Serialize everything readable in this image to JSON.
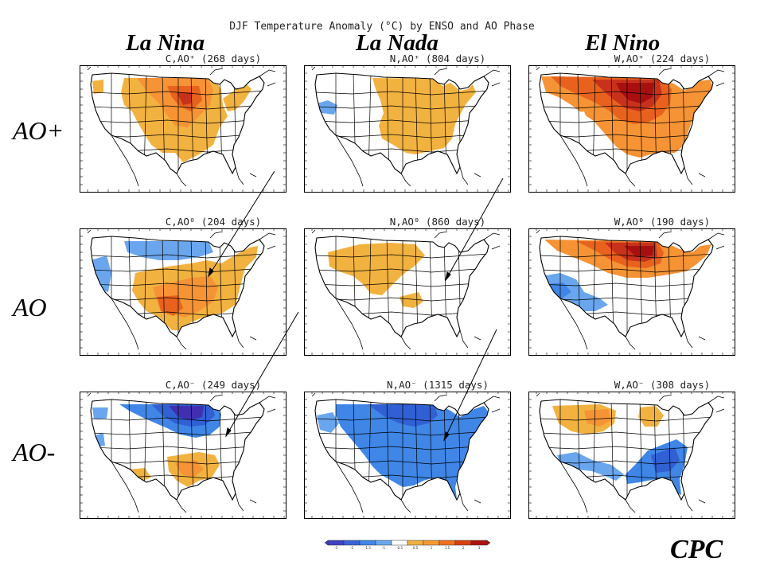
{
  "title": "DJF Temperature Anomaly (°C) by ENSO and AO Phase",
  "columns": [
    "La Nina",
    "La Nada",
    "El Nino"
  ],
  "rows": [
    "AO+",
    "AO",
    "AO-"
  ],
  "panels": [
    {
      "label": "C,AO⁺ (268 days)",
      "pattern": "cold_ao_pos"
    },
    {
      "label": "N,AO⁺ (804 days)",
      "pattern": "neutral_ao_pos"
    },
    {
      "label": "W,AO⁺ (224 days)",
      "pattern": "warm_ao_pos"
    },
    {
      "label": "C,AO⁰ (204 days)",
      "pattern": "cold_ao_neu"
    },
    {
      "label": "N,AO⁰ (860 days)",
      "pattern": "neutral_ao_neu"
    },
    {
      "label": "W,AO⁰ (190 days)",
      "pattern": "warm_ao_neu"
    },
    {
      "label": "C,AO⁻ (249 days)",
      "pattern": "cold_ao_neg"
    },
    {
      "label": "N,AO⁻ (1315 days)",
      "pattern": "neutral_ao_neg"
    },
    {
      "label": "W,AO⁻ (308 days)",
      "pattern": "warm_ao_neg"
    }
  ],
  "colorbar": {
    "ticks": [
      "-3",
      "-2",
      "-1.5",
      "-1",
      "-0.5",
      "0.5",
      "1",
      "1.5",
      "2",
      "3"
    ],
    "colors": [
      "#4040c0",
      "#3a62d8",
      "#3f86e6",
      "#6aa8ee",
      "#ffffff",
      "#f0b040",
      "#f59a30",
      "#ee7020",
      "#d84010",
      "#b01010"
    ]
  },
  "footer": "CPC",
  "colors": {
    "warm1": "#f2b240",
    "warm2": "#f59335",
    "warm3": "#e8621e",
    "warm4": "#c8321a",
    "warm5": "#a81010",
    "cold1": "#6aa6ee",
    "cold2": "#3f86e6",
    "cold3": "#3060d4",
    "cold4": "#4030b0"
  }
}
